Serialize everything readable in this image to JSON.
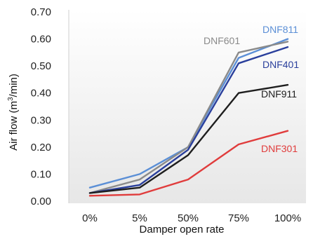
{
  "chart_data": {
    "type": "line",
    "xlabel": "Damper open rate",
    "ylabel_main": "Air flow (m",
    "ylabel_sup": "3",
    "ylabel_tail": "/min)",
    "categories": [
      "0%",
      "5%",
      "50%",
      "75%",
      "100%"
    ],
    "ylim": [
      0,
      0.7
    ],
    "yticks": [
      "0.00",
      "0.10",
      "0.20",
      "0.30",
      "0.40",
      "0.50",
      "0.60",
      "0.70"
    ],
    "grid": false,
    "series": [
      {
        "name": "DNF811",
        "color": "#5b8fd6",
        "values": [
          0.05,
          0.1,
          0.2,
          0.53,
          0.6
        ]
      },
      {
        "name": "DNF601",
        "color": "#8a8a8a",
        "values": [
          0.03,
          0.08,
          0.2,
          0.55,
          0.59
        ]
      },
      {
        "name": "DNF401",
        "color": "#2a3f9c",
        "values": [
          0.03,
          0.06,
          0.19,
          0.51,
          0.57
        ]
      },
      {
        "name": "DNF911",
        "color": "#1e1e1e",
        "values": [
          0.03,
          0.05,
          0.17,
          0.4,
          0.43
        ]
      },
      {
        "name": "DNF301",
        "color": "#e03c3c",
        "values": [
          0.02,
          0.025,
          0.08,
          0.21,
          0.26
        ]
      }
    ]
  }
}
